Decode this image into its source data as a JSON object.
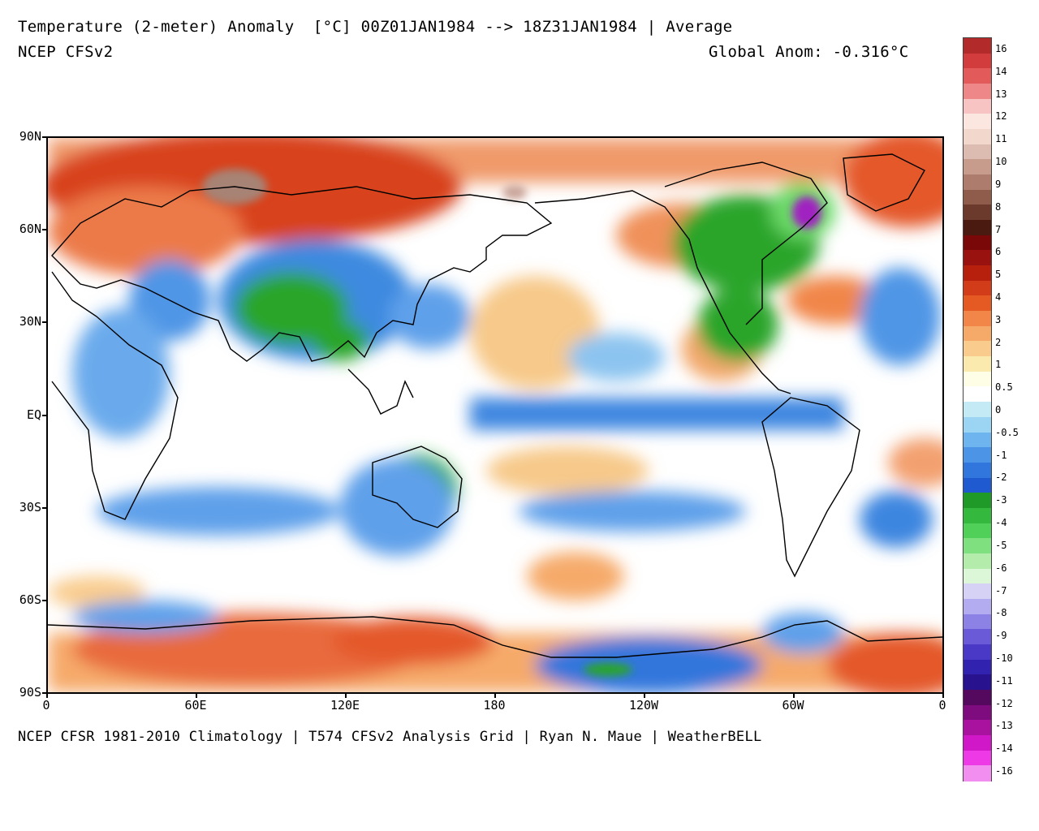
{
  "header": {
    "title": "Temperature (2-meter) Anomaly  [°C] 00Z01JAN1984 --> 18Z31JAN1984 | Average",
    "model": "NCEP CFSv2",
    "global_anomaly": "Global Anom: -0.316°C"
  },
  "footer": {
    "credit": "NCEP CFSR 1981-2010 Climatology | T574 CFSv2 Analysis Grid | Ryan N. Maue | WeatherBELL"
  },
  "map": {
    "projection": "equirectangular",
    "lat_labels": [
      "90N",
      "60N",
      "30N",
      "EQ",
      "30S",
      "60S",
      "90S"
    ],
    "lon_labels": [
      "0",
      "60E",
      "120E",
      "180",
      "120W",
      "60W",
      "0"
    ],
    "anomaly_regions": [
      {
        "region": "Arctic Siberia",
        "anomaly": 8,
        "color": "#a78374"
      },
      {
        "region": "Northern Eurasia",
        "anomaly": 4,
        "color": "#cf3a1c"
      },
      {
        "region": "Central Asia / China",
        "anomaly": -4,
        "color": "#28a52a"
      },
      {
        "region": "Eastern North America",
        "anomaly": -4,
        "color": "#28a52a"
      },
      {
        "region": "Hudson Bay / Labrador",
        "anomaly": -12,
        "color": "#a020c0"
      },
      {
        "region": "Australia interior",
        "anomaly": -4,
        "color": "#2fb33a"
      },
      {
        "region": "Antarctic coast",
        "anomaly": 3,
        "color": "#e86a3c"
      },
      {
        "region": "Equatorial Pacific",
        "anomaly": -1.5,
        "color": "#4a90e0"
      },
      {
        "region": "Southern Ocean",
        "anomaly": -1,
        "color": "#7ab8f0"
      },
      {
        "region": "North Pacific subtropics",
        "anomaly": 0.5,
        "color": "#f7c98a"
      }
    ]
  },
  "colorbar": {
    "labels": [
      "16",
      "14",
      "13",
      "12",
      "11",
      "10",
      "9",
      "8",
      "7",
      "6",
      "5",
      "4",
      "3",
      "2",
      "1",
      "0.5",
      "0",
      "-0.5",
      "-1",
      "-2",
      "-3",
      "-4",
      "-5",
      "-6",
      "-7",
      "-8",
      "-9",
      "-10",
      "-11",
      "-12",
      "-13",
      "-14",
      "-16"
    ],
    "colors": [
      "#b22a2a",
      "#d23c3c",
      "#e25a5a",
      "#ee8888",
      "#f8c3c3",
      "#fbe6e0",
      "#f2d8cc",
      "#dcbcb0",
      "#c79c8c",
      "#ad7c6c",
      "#8f5c4c",
      "#6c3a2c",
      "#4a1a10",
      "#7a0808",
      "#9a1210",
      "#b8200e",
      "#d23c18",
      "#e45a22",
      "#f18648",
      "#f6aa6a",
      "#f9cc8e",
      "#fbeaae",
      "#fefee6",
      "#ffffff",
      "#c4eaf6",
      "#9cd4f4",
      "#6eb4ee",
      "#4b94e6",
      "#3076dc",
      "#1f5ad0",
      "#1f9a28",
      "#35b83e",
      "#50d058",
      "#7ee07e",
      "#b4ecac",
      "#dcf6d8",
      "#d6d2f6",
      "#b4acf0",
      "#8c82e6",
      "#6a5ad8",
      "#4a38c6",
      "#3222b0",
      "#28128e",
      "#54085e",
      "#7e0c7e",
      "#a8129e",
      "#d018c8",
      "#ee3ae6",
      "#f28ef0"
    ]
  }
}
